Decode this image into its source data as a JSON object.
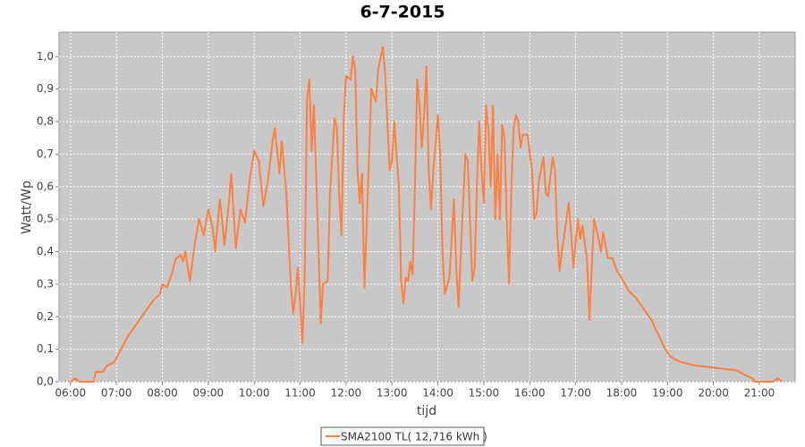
{
  "chart_data": {
    "type": "line",
    "title": "6-7-2015",
    "xlabel": "tijd",
    "ylabel": "Watt/Wp",
    "grid": true,
    "x": [
      6.0,
      6.1,
      6.2,
      6.5,
      6.55,
      6.7,
      6.8,
      6.95,
      7.1,
      7.25,
      7.4,
      7.6,
      7.8,
      7.95,
      8.0,
      8.1,
      8.2,
      8.3,
      8.4,
      8.45,
      8.5,
      8.6,
      8.7,
      8.8,
      8.9,
      9.0,
      9.1,
      9.15,
      9.25,
      9.3,
      9.35,
      9.45,
      9.5,
      9.6,
      9.7,
      9.8,
      9.9,
      10.0,
      10.1,
      10.2,
      10.3,
      10.4,
      10.45,
      10.55,
      10.6,
      10.7,
      10.8,
      10.85,
      10.9,
      10.95,
      11.0,
      11.05,
      11.1,
      11.15,
      11.2,
      11.25,
      11.3,
      11.35,
      11.45,
      11.5,
      11.6,
      11.65,
      11.75,
      11.8,
      11.85,
      11.9,
      11.95,
      12.0,
      12.1,
      12.15,
      12.2,
      12.25,
      12.3,
      12.35,
      12.4,
      12.45,
      12.5,
      12.55,
      12.6,
      12.65,
      12.7,
      12.8,
      12.85,
      12.9,
      12.95,
      13.0,
      13.05,
      13.15,
      13.2,
      13.25,
      13.3,
      13.35,
      13.4,
      13.45,
      13.5,
      13.55,
      13.6,
      13.65,
      13.7,
      13.75,
      13.8,
      13.85,
      13.9,
      14.0,
      14.05,
      14.1,
      14.15,
      14.25,
      14.35,
      14.4,
      14.45,
      14.5,
      14.6,
      14.65,
      14.75,
      14.8,
      14.85,
      14.9,
      14.95,
      15.0,
      15.05,
      15.1,
      15.15,
      15.2,
      15.25,
      15.3,
      15.35,
      15.4,
      15.45,
      15.5,
      15.55,
      15.6,
      15.65,
      15.7,
      15.75,
      15.8,
      15.85,
      15.95,
      16.05,
      16.1,
      16.15,
      16.2,
      16.3,
      16.35,
      16.4,
      16.5,
      16.55,
      16.6,
      16.65,
      16.7,
      16.85,
      16.9,
      16.95,
      17.0,
      17.05,
      17.1,
      17.15,
      17.25,
      17.3,
      17.35,
      17.4,
      17.5,
      17.55,
      17.6,
      17.7,
      17.8,
      17.9,
      18.0,
      18.15,
      18.3,
      18.5,
      18.65,
      18.75,
      18.85,
      18.95,
      19.05,
      19.15,
      19.3,
      19.6,
      19.9,
      20.2,
      20.5,
      20.7,
      20.85,
      20.9,
      21.3,
      21.4,
      21.5
    ],
    "series": [
      {
        "name": "SMA2100 TL( 12,716 kWh )",
        "color": "#ff7f3f",
        "values": [
          0,
          0.01,
          0,
          0,
          0.03,
          0.03,
          0.05,
          0.06,
          0.1,
          0.14,
          0.17,
          0.21,
          0.25,
          0.27,
          0.3,
          0.29,
          0.33,
          0.38,
          0.39,
          0.37,
          0.4,
          0.31,
          0.42,
          0.5,
          0.45,
          0.53,
          0.47,
          0.4,
          0.56,
          0.5,
          0.42,
          0.55,
          0.64,
          0.41,
          0.53,
          0.49,
          0.62,
          0.71,
          0.68,
          0.54,
          0.62,
          0.74,
          0.78,
          0.64,
          0.74,
          0.58,
          0.29,
          0.21,
          0.27,
          0.35,
          0.24,
          0.12,
          0.32,
          0.87,
          0.93,
          0.71,
          0.85,
          0.63,
          0.18,
          0.3,
          0.31,
          0.58,
          0.81,
          0.78,
          0.58,
          0.45,
          0.81,
          0.94,
          0.93,
          1.0,
          0.96,
          0.65,
          0.55,
          0.64,
          0.29,
          0.48,
          0.69,
          0.9,
          0.88,
          0.86,
          0.96,
          1.03,
          0.95,
          0.8,
          0.65,
          0.68,
          0.8,
          0.6,
          0.31,
          0.24,
          0.32,
          0.31,
          0.37,
          0.33,
          0.6,
          0.93,
          0.85,
          0.72,
          0.82,
          0.97,
          0.65,
          0.53,
          0.65,
          0.82,
          0.7,
          0.4,
          0.27,
          0.32,
          0.56,
          0.35,
          0.23,
          0.4,
          0.7,
          0.68,
          0.31,
          0.35,
          0.6,
          0.8,
          0.65,
          0.55,
          0.85,
          0.78,
          0.6,
          0.85,
          0.5,
          0.7,
          0.5,
          0.79,
          0.75,
          0.5,
          0.3,
          0.6,
          0.78,
          0.82,
          0.8,
          0.72,
          0.76,
          0.76,
          0.65,
          0.5,
          0.52,
          0.62,
          0.69,
          0.58,
          0.57,
          0.69,
          0.65,
          0.45,
          0.34,
          0.4,
          0.55,
          0.46,
          0.35,
          0.43,
          0.5,
          0.44,
          0.48,
          0.37,
          0.19,
          0.35,
          0.5,
          0.44,
          0.4,
          0.46,
          0.38,
          0.38,
          0.34,
          0.32,
          0.28,
          0.26,
          0.22,
          0.19,
          0.16,
          0.13,
          0.1,
          0.08,
          0.07,
          0.06,
          0.05,
          0.045,
          0.04,
          0.035,
          0.02,
          0.01,
          0,
          0,
          0.01,
          0
        ]
      }
    ],
    "xlim": [
      5.75,
      21.78
    ],
    "xticks": [
      {
        "value": 6,
        "label": "06:00"
      },
      {
        "value": 7,
        "label": "07:00"
      },
      {
        "value": 8,
        "label": "08:00"
      },
      {
        "value": 9,
        "label": "09:00"
      },
      {
        "value": 10,
        "label": "10:00"
      },
      {
        "value": 11,
        "label": "11:00"
      },
      {
        "value": 12,
        "label": "12:00"
      },
      {
        "value": 13,
        "label": "13:00"
      },
      {
        "value": 14,
        "label": "14:00"
      },
      {
        "value": 15,
        "label": "15:00"
      },
      {
        "value": 16,
        "label": "16:00"
      },
      {
        "value": 17,
        "label": "17:00"
      },
      {
        "value": 18,
        "label": "18:00"
      },
      {
        "value": 19,
        "label": "19:00"
      },
      {
        "value": 20,
        "label": "20:00"
      },
      {
        "value": 21,
        "label": "21:00"
      }
    ],
    "ylim": [
      0,
      1.075
    ],
    "yticks": [
      {
        "value": 0,
        "label": "0,0"
      },
      {
        "value": 0.1,
        "label": "0,1"
      },
      {
        "value": 0.2,
        "label": "0,2"
      },
      {
        "value": 0.3,
        "label": "0,3"
      },
      {
        "value": 0.4,
        "label": "0,4"
      },
      {
        "value": 0.5,
        "label": "0,5"
      },
      {
        "value": 0.6,
        "label": "0,6"
      },
      {
        "value": 0.7,
        "label": "0,7"
      },
      {
        "value": 0.8,
        "label": "0,8"
      },
      {
        "value": 0.9,
        "label": "0,9"
      },
      {
        "value": 1.0,
        "label": "1,0"
      }
    ]
  }
}
